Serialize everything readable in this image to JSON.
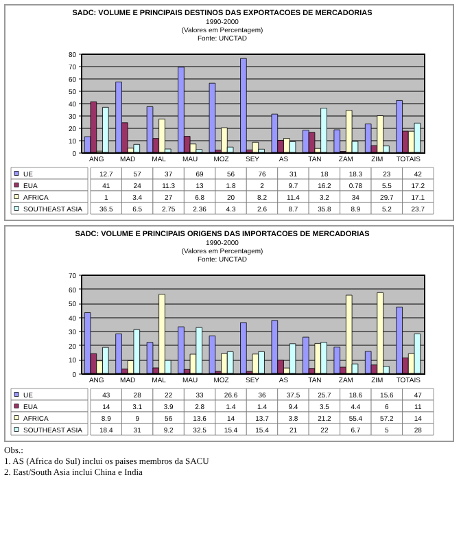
{
  "chart_data": [
    {
      "type": "bar",
      "title": "SADC: VOLUME E PRINCIPAIS DESTINOS DAS EXPORTACOES DE MERCADORIAS",
      "subtitle": "1990-2000\n(Valores em Percentagem)\nFonte: UNCTAD",
      "categories": [
        "ANG",
        "MAD",
        "MAL",
        "MAU",
        "MOZ",
        "SEY",
        "AS",
        "TAN",
        "ZAM",
        "ZIM",
        "TOTAIS"
      ],
      "series": [
        {
          "name": "UE",
          "color": "#9999ff",
          "values": [
            12.7,
            57,
            37,
            69,
            56,
            76,
            31,
            18,
            18.3,
            23,
            42
          ]
        },
        {
          "name": "EUA",
          "color": "#993366",
          "values": [
            41,
            24,
            11.3,
            13,
            1.8,
            2,
            9.7,
            16.2,
            0.78,
            5.5,
            17.2
          ]
        },
        {
          "name": "AFRICA",
          "color": "#ffffcc",
          "values": [
            1,
            3.4,
            27,
            6.8,
            20,
            8.2,
            11.4,
            3.2,
            34,
            29.7,
            17.1
          ]
        },
        {
          "name": "SOUTHEAST ASIA",
          "color": "#ccffff",
          "values": [
            36.5,
            6.5,
            2.75,
            2.36,
            4.3,
            2.6,
            8.7,
            35.8,
            8.9,
            5.2,
            23.7
          ]
        }
      ],
      "ylim": [
        0,
        80
      ],
      "yticks": [
        0,
        10,
        20,
        30,
        40,
        50,
        60,
        70,
        80
      ],
      "grid": "y",
      "legend": "bottom",
      "data_labels": true
    },
    {
      "type": "bar",
      "title": "SADC: VOLUME E PRINCIPAIS ORIGENS DAS IMPORTACOES DE MERCADORIAS",
      "subtitle": "1990-2000\n(Valores em Percentagem)\nFonte: UNCTAD",
      "categories": [
        "ANG",
        "MAD",
        "MAL",
        "MAU",
        "MOZ",
        "SEY",
        "AS",
        "TAN",
        "ZAM",
        "ZIM",
        "TOTAIS"
      ],
      "series": [
        {
          "name": "UE",
          "color": "#9999ff",
          "values": [
            43,
            28,
            22,
            33,
            26.6,
            36,
            37.5,
            25.7,
            18.6,
            15.6,
            47
          ]
        },
        {
          "name": "EUA",
          "color": "#993366",
          "values": [
            14,
            3.1,
            3.9,
            2.8,
            1.4,
            1.4,
            9.4,
            3.5,
            4.4,
            6,
            11
          ]
        },
        {
          "name": "AFRICA",
          "color": "#ffffcc",
          "values": [
            8.9,
            9,
            56,
            13.6,
            14,
            13.7,
            3.8,
            21.2,
            55.4,
            57.2,
            14
          ]
        },
        {
          "name": "SOUTHEAST ASIA",
          "color": "#ccffff",
          "values": [
            18.4,
            31,
            9.2,
            32.5,
            15.4,
            15.4,
            21,
            22,
            6.7,
            5,
            28
          ]
        }
      ],
      "ylim": [
        0,
        70
      ],
      "yticks": [
        0,
        10,
        20,
        30,
        40,
        50,
        60,
        70
      ],
      "grid": "y",
      "legend": "bottom",
      "data_labels": true,
      "annotations": [
        "Obs.:",
        "1. AS (Africa do Sul) inclui os paises membros da SACU",
        "2. East/South Asia inclui China e India"
      ]
    }
  ]
}
